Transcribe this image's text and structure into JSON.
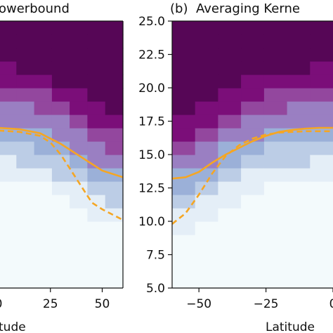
{
  "chart_data": [
    {
      "type": "heatmap",
      "title": "owerbound",
      "xlabel": "tude",
      "ylabel": "",
      "x_ticks": [
        "0",
        "25",
        "50"
      ],
      "xlim": [
        0,
        60
      ],
      "ylim": [
        5,
        25
      ],
      "colormap": [
        "#f3fafc",
        "#e4eef7",
        "#bccde6",
        "#9bb0d8",
        "#9a7fc2",
        "#93479e",
        "#7b0e79",
        "#560656"
      ],
      "series": [
        {
          "style": "solid",
          "color": "#f5a623",
          "x": [
            0,
            10,
            20,
            30,
            40,
            50,
            60
          ],
          "y": [
            17.0,
            16.9,
            16.6,
            15.8,
            14.8,
            13.8,
            13.3
          ]
        },
        {
          "style": "dashed",
          "color": "#f5a623",
          "x": [
            0,
            10,
            20,
            25,
            30,
            35,
            40,
            45,
            50,
            55,
            60
          ],
          "y": [
            16.8,
            16.7,
            16.4,
            15.9,
            15.0,
            13.8,
            12.6,
            11.4,
            10.9,
            10.5,
            10.1
          ]
        }
      ]
    },
    {
      "type": "heatmap",
      "panel_label": "(b)",
      "title": "Averaging Kerne",
      "xlabel": "Latitude",
      "ylabel": "",
      "x_ticks": [
        "−50",
        "−25",
        "0"
      ],
      "y_ticks": [
        "5.0",
        "7.5",
        "10.0",
        "12.5",
        "15.0",
        "17.5",
        "20.0",
        "22.5",
        "25.0"
      ],
      "xlim": [
        -60,
        0
      ],
      "ylim": [
        5,
        25
      ],
      "colormap": [
        "#f3fafc",
        "#e4eef7",
        "#bccde6",
        "#9bb0d8",
        "#9a7fc2",
        "#93479e",
        "#7b0e79",
        "#560656"
      ],
      "series": [
        {
          "style": "solid",
          "color": "#f5a623",
          "x": [
            -60,
            -55,
            -50,
            -45,
            -40,
            -35,
            -30,
            -25,
            -20,
            -15,
            -10,
            -5,
            0,
            5,
            10
          ],
          "y": [
            13.2,
            13.3,
            13.7,
            14.4,
            15.0,
            15.5,
            16.0,
            16.4,
            16.7,
            16.85,
            16.95,
            17.0,
            17.0,
            16.9,
            16.6
          ]
        },
        {
          "style": "dashed",
          "color": "#f5a623",
          "x": [
            -60,
            -55,
            -50,
            -45,
            -40,
            -35,
            -30,
            -25,
            -20,
            -15,
            -10,
            -5,
            0,
            5,
            10
          ],
          "y": [
            9.8,
            10.6,
            12.0,
            13.6,
            14.9,
            15.7,
            16.2,
            16.5,
            16.65,
            16.7,
            16.75,
            16.75,
            16.75,
            16.7,
            16.6
          ]
        }
      ]
    }
  ]
}
